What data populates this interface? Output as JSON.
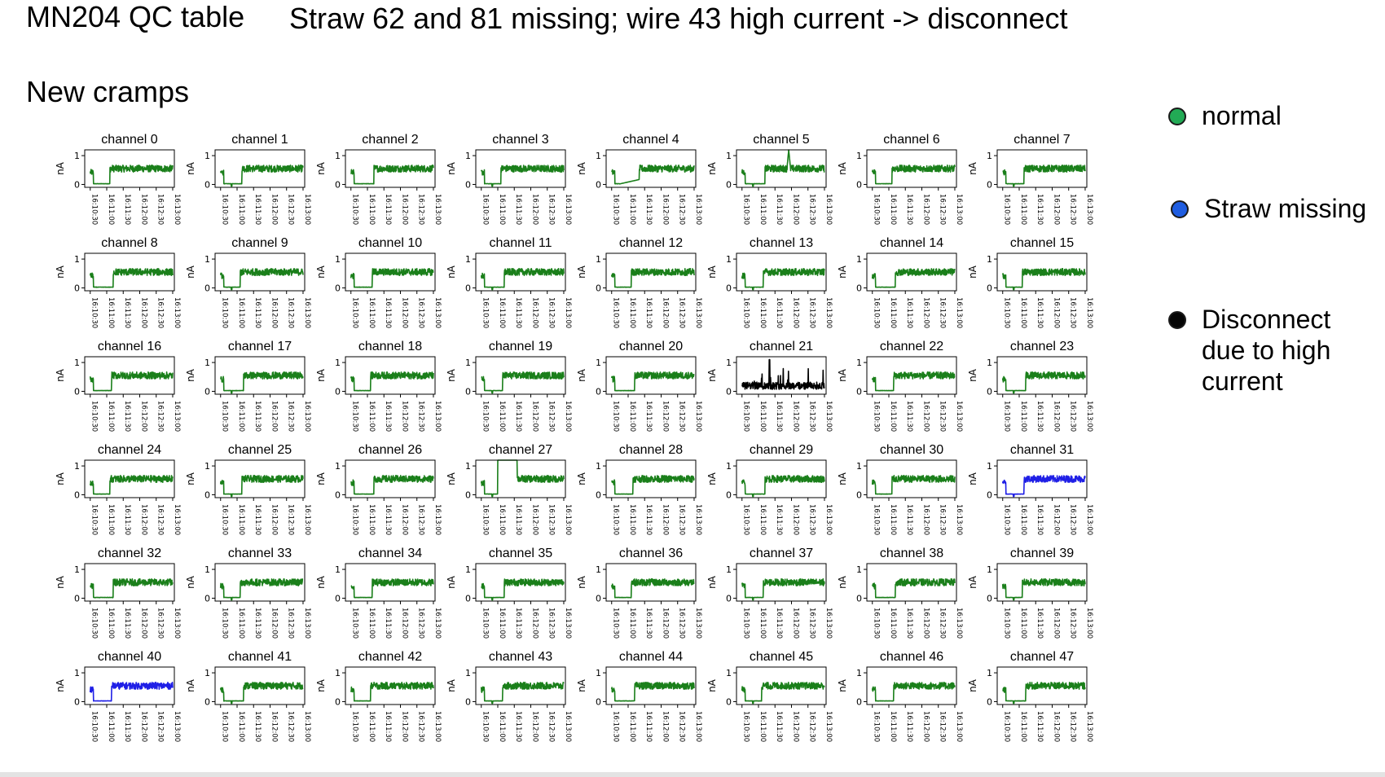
{
  "slide": {
    "title": "MN204 QC table",
    "subtitle": "Straw 62 and 81 missing; wire 43 high current -> disconnect",
    "section": "New cramps"
  },
  "legend": [
    {
      "label": "normal",
      "color": "#22aa55",
      "status": "normal"
    },
    {
      "label": "Straw missing",
      "color": "#1f5de0",
      "status": "missing"
    },
    {
      "label": "Disconnect due to high current",
      "color": "#050505",
      "status": "disconnect"
    }
  ],
  "colors": {
    "normal": "#1a7f1a",
    "missing": "#1f1fe6",
    "disconnect": "#000000"
  },
  "chart_data": {
    "type": "line",
    "panel_titles": [
      "channel 0",
      "channel 1",
      "channel 2",
      "channel 3",
      "channel 4",
      "channel 5",
      "channel 6",
      "channel 7",
      "channel 8",
      "channel 9",
      "channel 10",
      "channel 11",
      "channel 12",
      "channel 13",
      "channel 14",
      "channel 15",
      "channel 16",
      "channel 17",
      "channel 18",
      "channel 19",
      "channel 20",
      "channel 21",
      "channel 22",
      "channel 23",
      "channel 24",
      "channel 25",
      "channel 26",
      "channel 27",
      "channel 28",
      "channel 29",
      "channel 30",
      "channel 31",
      "channel 32",
      "channel 33",
      "channel 34",
      "channel 35",
      "channel 36",
      "channel 37",
      "channel 38",
      "channel 39",
      "channel 40",
      "channel 41",
      "channel 42",
      "channel 43",
      "channel 44",
      "channel 45",
      "channel 46",
      "channel 47"
    ],
    "ylabel": "nA",
    "yticks": [
      "0",
      "1"
    ],
    "ylim": [
      -0.1,
      1.2
    ],
    "xticks": [
      "16:10:30",
      "16:11:00",
      "16:11:30",
      "16:12:00",
      "16:12:30",
      "16:13:00"
    ],
    "status": [
      "normal",
      "normal",
      "normal",
      "normal",
      "normal",
      "normal",
      "normal",
      "normal",
      "normal",
      "normal",
      "normal",
      "normal",
      "normal",
      "normal",
      "normal",
      "normal",
      "normal",
      "normal",
      "normal",
      "normal",
      "normal",
      "disconnect",
      "normal",
      "normal",
      "normal",
      "normal",
      "normal",
      "normal",
      "normal",
      "normal",
      "normal",
      "missing",
      "normal",
      "normal",
      "normal",
      "normal",
      "normal",
      "normal",
      "normal",
      "normal",
      "missing",
      "normal",
      "normal",
      "normal",
      "normal",
      "normal",
      "normal",
      "normal"
    ],
    "profile": {
      "early_spike": 0.5,
      "baseline": 0.02,
      "plateau": 0.55,
      "plateau_noise": 0.12
    },
    "features": {
      "4": {
        "ramp_between": [
          "16:10:45",
          "16:11:20"
        ],
        "ramp_level": 0.15
      },
      "5": {
        "peak": 1.2,
        "peak_at": "16:11:55"
      },
      "27": {
        "peak": 1.2,
        "peak_between": [
          "16:11:00",
          "16:11:35"
        ]
      },
      "21": {
        "noisy": true,
        "peak": 1.1
      }
    }
  }
}
